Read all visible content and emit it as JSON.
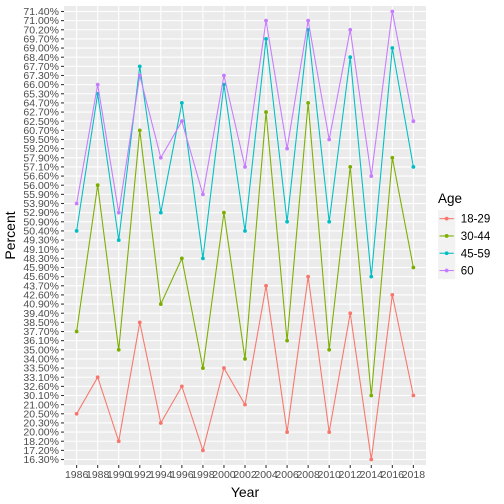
{
  "chart_data": {
    "type": "line",
    "xlabel": "Year",
    "ylabel": "Percent",
    "x": [
      1986,
      1988,
      1990,
      1992,
      1994,
      1996,
      1998,
      2000,
      2002,
      2004,
      2006,
      2008,
      2010,
      2012,
      2014,
      2016,
      2018
    ],
    "y_tick_labels": [
      "16.30%",
      "17.20%",
      "18.20%",
      "20.00%",
      "20.30%",
      "20.50%",
      "21.00%",
      "30.10%",
      "32.60%",
      "33.10%",
      "33.50%",
      "34.00%",
      "35.00%",
      "36.10%",
      "37.70%",
      "38.50%",
      "39.40%",
      "40.90%",
      "42.60%",
      "43.70%",
      "45.60%",
      "45.90%",
      "48.30%",
      "49.10%",
      "49.30%",
      "50.40%",
      "50.90%",
      "52.90%",
      "53.90%",
      "55.90%",
      "56.00%",
      "56.60%",
      "57.10%",
      "57.90%",
      "59.20%",
      "59.50%",
      "60.70%",
      "62.50%",
      "62.70%",
      "64.70%",
      "65.30%",
      "66.00%",
      "67.30%",
      "67.70%",
      "68.40%",
      "69.00%",
      "69.70%",
      "70.20%",
      "71.00%",
      "71.40%"
    ],
    "legend": {
      "title": "Age",
      "position": "right"
    },
    "grid": true,
    "series": [
      {
        "name": "18-29",
        "color": "#F8766D",
        "values": [
          "20.50%",
          "33.10%",
          "18.20%",
          "38.50%",
          "20.30%",
          "32.60%",
          "17.20%",
          "33.50%",
          "21.00%",
          "43.70%",
          "20.00%",
          "45.60%",
          "20.00%",
          "39.40%",
          "16.30%",
          "42.60%",
          "30.10%"
        ]
      },
      {
        "name": "30-44",
        "color": "#7CAE00",
        "values": [
          "37.70%",
          "56.00%",
          "35.00%",
          "60.70%",
          "40.90%",
          "48.30%",
          "33.50%",
          "52.90%",
          "34.00%",
          "62.70%",
          "36.10%",
          "64.70%",
          "35.00%",
          "57.10%",
          "30.10%",
          "57.90%",
          "45.90%"
        ]
      },
      {
        "name": "45-59",
        "color": "#00BFC4",
        "values": [
          "50.40%",
          "65.30%",
          "49.30%",
          "67.70%",
          "52.90%",
          "64.70%",
          "48.30%",
          "66.00%",
          "50.40%",
          "69.70%",
          "50.90%",
          "70.20%",
          "50.90%",
          "68.40%",
          "45.60%",
          "69.00%",
          "57.10%"
        ]
      },
      {
        "name": "60",
        "color": "#C77CFF",
        "values": [
          "53.90%",
          "66.00%",
          "52.90%",
          "67.30%",
          "57.90%",
          "62.50%",
          "55.90%",
          "67.30%",
          "57.10%",
          "71.00%",
          "59.20%",
          "71.00%",
          "59.50%",
          "70.20%",
          "56.60%",
          "71.40%",
          "62.50%"
        ]
      }
    ]
  }
}
